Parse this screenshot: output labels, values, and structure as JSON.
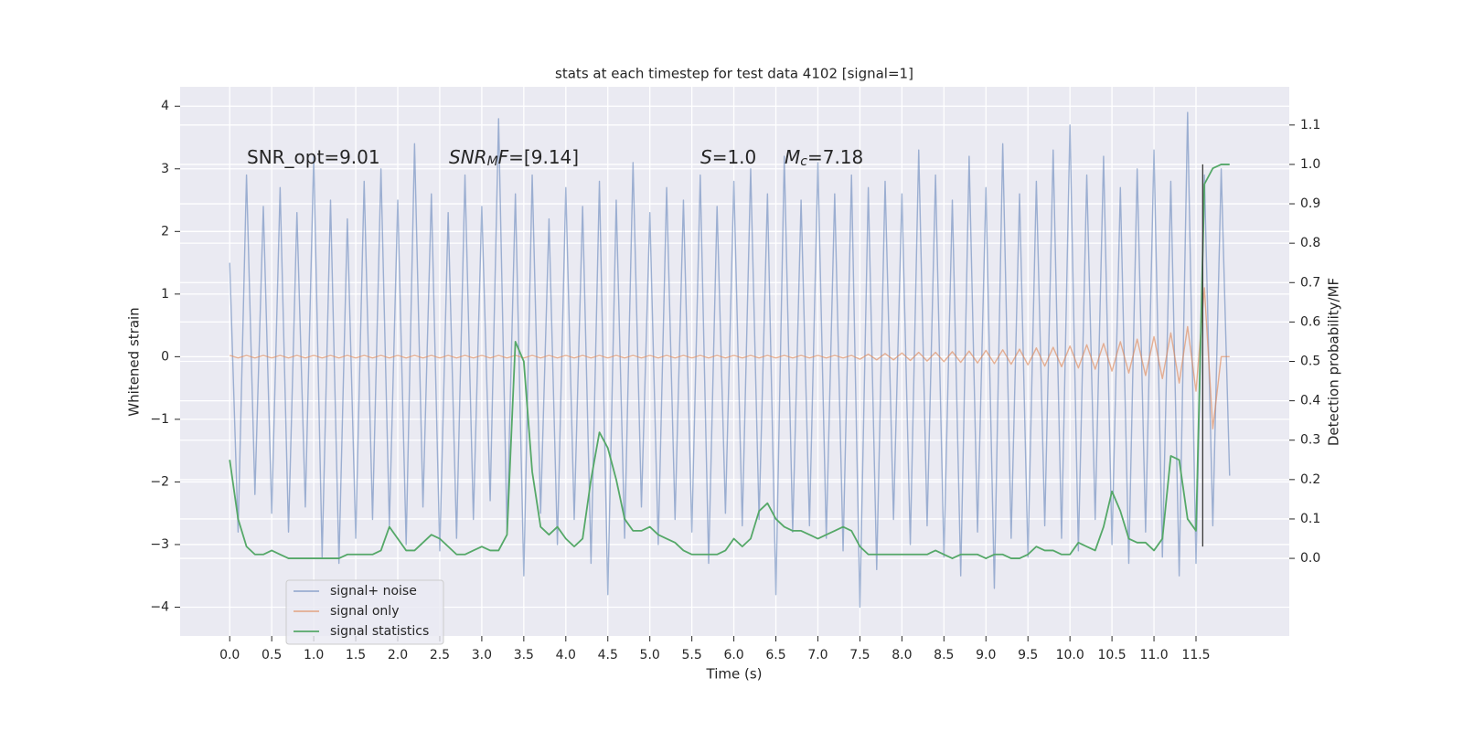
{
  "chart_data": {
    "type": "line",
    "title": "stats at each timestep for test data 4102 [signal=1]",
    "xlabel": "Time (s)",
    "ylabel": "Whitened strain",
    "y2label": "Detection probability/MF",
    "annotations": [
      [
        {
          "text": "SNR_opt=9.01"
        }
      ],
      [
        {
          "text": "SNR",
          "italic": true
        },
        {
          "text": "M",
          "italic": true,
          "sub": true
        },
        {
          "text": "F",
          "italic": true
        },
        {
          "text": "=[9.14]"
        }
      ],
      [
        {
          "text": "S",
          "italic": true
        },
        {
          "text": "=1.0"
        }
      ],
      [
        {
          "text": "M",
          "italic": true
        },
        {
          "text": "c",
          "italic": true,
          "sub": true
        },
        {
          "text": "=7.18"
        }
      ]
    ],
    "vline": {
      "x": 11.58,
      "color": "#3a3a3a"
    },
    "x": [
      0.0,
      0.1,
      0.2,
      0.3,
      0.4,
      0.5,
      0.6,
      0.7,
      0.8,
      0.9,
      1.0,
      1.1,
      1.2,
      1.3,
      1.4,
      1.5,
      1.6,
      1.7,
      1.8,
      1.9,
      2.0,
      2.1,
      2.2,
      2.3,
      2.4,
      2.5,
      2.6,
      2.7,
      2.8,
      2.9,
      3.0,
      3.1,
      3.2,
      3.3,
      3.4,
      3.5,
      3.6,
      3.7,
      3.8,
      3.9,
      4.0,
      4.1,
      4.2,
      4.3,
      4.4,
      4.5,
      4.6,
      4.7,
      4.8,
      4.9,
      5.0,
      5.1,
      5.2,
      5.3,
      5.4,
      5.5,
      5.6,
      5.7,
      5.8,
      5.9,
      6.0,
      6.1,
      6.2,
      6.3,
      6.4,
      6.5,
      6.6,
      6.7,
      6.8,
      6.9,
      7.0,
      7.1,
      7.2,
      7.3,
      7.4,
      7.5,
      7.6,
      7.7,
      7.8,
      7.9,
      8.0,
      8.1,
      8.2,
      8.3,
      8.4,
      8.5,
      8.6,
      8.7,
      8.8,
      8.9,
      9.0,
      9.1,
      9.2,
      9.3,
      9.4,
      9.5,
      9.6,
      9.7,
      9.8,
      9.9,
      10.0,
      10.1,
      10.2,
      10.3,
      10.4,
      10.5,
      10.6,
      10.7,
      10.8,
      10.9,
      11.0,
      11.1,
      11.2,
      11.3,
      11.4,
      11.5,
      11.6,
      11.7,
      11.8,
      11.9
    ],
    "series": [
      {
        "name": "signal+ noise",
        "color": "#4c72b0",
        "opacity": 0.5,
        "values": [
          1.5,
          -2.8,
          2.9,
          -2.2,
          2.4,
          -2.5,
          2.7,
          -2.8,
          2.3,
          -2.4,
          3.2,
          -3.2,
          2.5,
          -3.3,
          2.2,
          -2.9,
          2.8,
          -2.6,
          3.0,
          -2.7,
          2.5,
          -3.0,
          3.4,
          -2.4,
          2.6,
          -3.1,
          2.3,
          -2.9,
          2.9,
          -2.6,
          2.4,
          -2.3,
          3.8,
          -2.8,
          2.6,
          -3.5,
          2.9,
          -2.5,
          2.2,
          -3.0,
          2.7,
          -2.6,
          2.4,
          -3.3,
          2.8,
          -3.8,
          2.5,
          -2.9,
          3.1,
          -2.4,
          2.3,
          -3.0,
          2.7,
          -2.6,
          2.5,
          -2.8,
          2.9,
          -3.3,
          2.4,
          -2.5,
          2.8,
          -2.7,
          3.0,
          -2.6,
          2.6,
          -3.8,
          3.2,
          -2.8,
          2.5,
          -2.7,
          3.1,
          -2.9,
          2.6,
          -3.1,
          2.9,
          -4.0,
          2.7,
          -3.4,
          2.8,
          -2.6,
          2.6,
          -3.0,
          3.3,
          -2.7,
          2.9,
          -3.2,
          2.5,
          -3.5,
          3.2,
          -2.8,
          2.7,
          -3.7,
          3.4,
          -2.9,
          2.6,
          -3.2,
          2.8,
          -2.7,
          3.3,
          -2.9,
          3.7,
          -3.1,
          2.9,
          -2.6,
          3.2,
          -3.0,
          2.7,
          -3.3,
          3.0,
          -2.8,
          3.3,
          -3.2,
          2.8,
          -3.5,
          3.9,
          -3.3,
          2.9,
          -2.7,
          3.0,
          -1.9
        ]
      },
      {
        "name": "signal only",
        "color": "#dd8452",
        "opacity": 0.6,
        "values": [
          0.02,
          -0.02,
          0.02,
          -0.02,
          0.02,
          -0.02,
          0.02,
          -0.02,
          0.02,
          -0.02,
          0.02,
          -0.02,
          0.02,
          -0.02,
          0.02,
          -0.02,
          0.02,
          -0.02,
          0.02,
          -0.02,
          0.02,
          -0.02,
          0.02,
          -0.02,
          0.02,
          -0.02,
          0.02,
          -0.02,
          0.02,
          -0.02,
          0.02,
          -0.02,
          0.02,
          -0.02,
          0.02,
          -0.02,
          0.02,
          -0.02,
          0.02,
          -0.02,
          0.02,
          -0.02,
          0.02,
          -0.02,
          0.02,
          -0.02,
          0.02,
          -0.02,
          0.02,
          -0.02,
          0.02,
          -0.02,
          0.02,
          -0.02,
          0.02,
          -0.02,
          0.02,
          -0.02,
          0.02,
          -0.02,
          0.02,
          -0.02,
          0.02,
          -0.02,
          0.02,
          -0.02,
          0.02,
          -0.02,
          0.02,
          -0.02,
          0.02,
          -0.02,
          0.02,
          -0.02,
          0.02,
          -0.04,
          0.04,
          -0.05,
          0.05,
          -0.05,
          0.06,
          -0.06,
          0.07,
          -0.07,
          0.07,
          -0.08,
          0.08,
          -0.09,
          0.09,
          -0.1,
          0.1,
          -0.11,
          0.11,
          -0.12,
          0.12,
          -0.13,
          0.14,
          -0.15,
          0.15,
          -0.16,
          0.17,
          -0.18,
          0.19,
          -0.2,
          0.21,
          -0.23,
          0.24,
          -0.26,
          0.28,
          -0.3,
          0.32,
          -0.35,
          0.38,
          -0.42,
          0.48,
          -0.55,
          1.1,
          -1.15,
          0,
          0
        ]
      },
      {
        "name": "signal statistics",
        "color": "#55a868",
        "opacity": 1,
        "axis": "y2",
        "values": [
          0.25,
          0.1,
          0.03,
          0.01,
          0.01,
          0.02,
          0.01,
          0.0,
          0.0,
          0.0,
          0.0,
          0.0,
          0.0,
          0.0,
          0.01,
          0.01,
          0.01,
          0.01,
          0.02,
          0.08,
          0.05,
          0.02,
          0.02,
          0.04,
          0.06,
          0.05,
          0.03,
          0.01,
          0.01,
          0.02,
          0.03,
          0.02,
          0.02,
          0.06,
          0.55,
          0.5,
          0.22,
          0.08,
          0.06,
          0.08,
          0.05,
          0.03,
          0.05,
          0.2,
          0.32,
          0.28,
          0.2,
          0.1,
          0.07,
          0.07,
          0.08,
          0.06,
          0.05,
          0.04,
          0.02,
          0.01,
          0.01,
          0.01,
          0.01,
          0.02,
          0.05,
          0.03,
          0.05,
          0.12,
          0.14,
          0.1,
          0.08,
          0.07,
          0.07,
          0.06,
          0.05,
          0.06,
          0.07,
          0.08,
          0.07,
          0.03,
          0.01,
          0.01,
          0.01,
          0.01,
          0.01,
          0.01,
          0.01,
          0.01,
          0.02,
          0.01,
          0.0,
          0.01,
          0.01,
          0.01,
          0.0,
          0.01,
          0.01,
          0.0,
          0.0,
          0.01,
          0.03,
          0.02,
          0.02,
          0.01,
          0.01,
          0.04,
          0.03,
          0.02,
          0.08,
          0.17,
          0.12,
          0.05,
          0.04,
          0.04,
          0.02,
          0.05,
          0.26,
          0.25,
          0.1,
          0.07,
          0.95,
          0.99,
          1.0,
          1.0
        ]
      }
    ],
    "xlim": [
      -0.59,
      12.61
    ],
    "ylim": [
      -4.46,
      4.31
    ],
    "y2lim": [
      -0.197,
      1.197
    ],
    "xticks": [
      {
        "value": 0,
        "label": "0.0"
      },
      {
        "value": 0.5,
        "label": "0.5"
      },
      {
        "value": 1,
        "label": "1.0"
      },
      {
        "value": 1.5,
        "label": "1.5"
      },
      {
        "value": 2,
        "label": "2.0"
      },
      {
        "value": 2.5,
        "label": "2.5"
      },
      {
        "value": 3,
        "label": "3.0"
      },
      {
        "value": 3.5,
        "label": "3.5"
      },
      {
        "value": 4,
        "label": "4.0"
      },
      {
        "value": 4.5,
        "label": "4.5"
      },
      {
        "value": 5,
        "label": "5.0"
      },
      {
        "value": 5.5,
        "label": "5.5"
      },
      {
        "value": 6,
        "label": "6.0"
      },
      {
        "value": 6.5,
        "label": "6.5"
      },
      {
        "value": 7,
        "label": "7.0"
      },
      {
        "value": 7.5,
        "label": "7.5"
      },
      {
        "value": 8,
        "label": "8.0"
      },
      {
        "value": 8.5,
        "label": "8.5"
      },
      {
        "value": 9,
        "label": "9.0"
      },
      {
        "value": 9.5,
        "label": "9.5"
      },
      {
        "value": 10,
        "label": "10.0"
      },
      {
        "value": 10.5,
        "label": "10.5"
      },
      {
        "value": 11,
        "label": "11.0"
      },
      {
        "value": 11.5,
        "label": "11.5"
      }
    ],
    "yticks": [
      {
        "value": -4,
        "label": "−4"
      },
      {
        "value": -3,
        "label": "−3"
      },
      {
        "value": -2,
        "label": "−2"
      },
      {
        "value": -1,
        "label": "−1"
      },
      0,
      1,
      2,
      3,
      4
    ],
    "y2ticks": [
      {
        "value": 0,
        "label": "0.0"
      },
      {
        "value": 0.1,
        "label": "0.1"
      },
      {
        "value": 0.2,
        "label": "0.2"
      },
      {
        "value": 0.3,
        "label": "0.3"
      },
      {
        "value": 0.4,
        "label": "0.4"
      },
      {
        "value": 0.5,
        "label": "0.5"
      },
      {
        "value": 0.6,
        "label": "0.6"
      },
      {
        "value": 0.7,
        "label": "0.7"
      },
      {
        "value": 0.8,
        "label": "0.8"
      },
      {
        "value": 0.9,
        "label": "0.9"
      },
      {
        "value": 1,
        "label": "1.0"
      },
      {
        "value": 1.1,
        "label": "1.1"
      }
    ],
    "grid": true,
    "background": "#eaeaf2",
    "legend": "lower left"
  }
}
